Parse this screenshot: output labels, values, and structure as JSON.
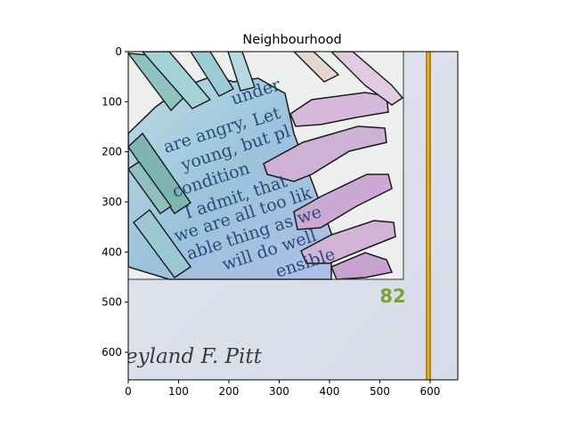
{
  "chart_data": {
    "type": "image",
    "title": "Neighbourhood",
    "xlim": [
      0,
      655
    ],
    "ylim": [
      655,
      0
    ],
    "xticks": [
      0,
      100,
      200,
      300,
      400,
      500,
      600
    ],
    "yticks": [
      0,
      100,
      200,
      300,
      400,
      500,
      600
    ],
    "grid": false,
    "image_text": {
      "page_number": "82",
      "credit": "eyland F. Pitt",
      "collage_words": [
        "under",
        "Let",
        "are angry,",
        "young, but pl",
        "condition",
        "I admit, that",
        "we are all too lik",
        "able thing as we",
        "will do well",
        "ensible"
      ]
    },
    "colors": {
      "page_background": "#dee3ee",
      "page_number": "#7aa038",
      "gold_stripe": "#b8860b",
      "hand_blue": "#9fc8dc",
      "hand_purple": "#cfaed5"
    }
  }
}
